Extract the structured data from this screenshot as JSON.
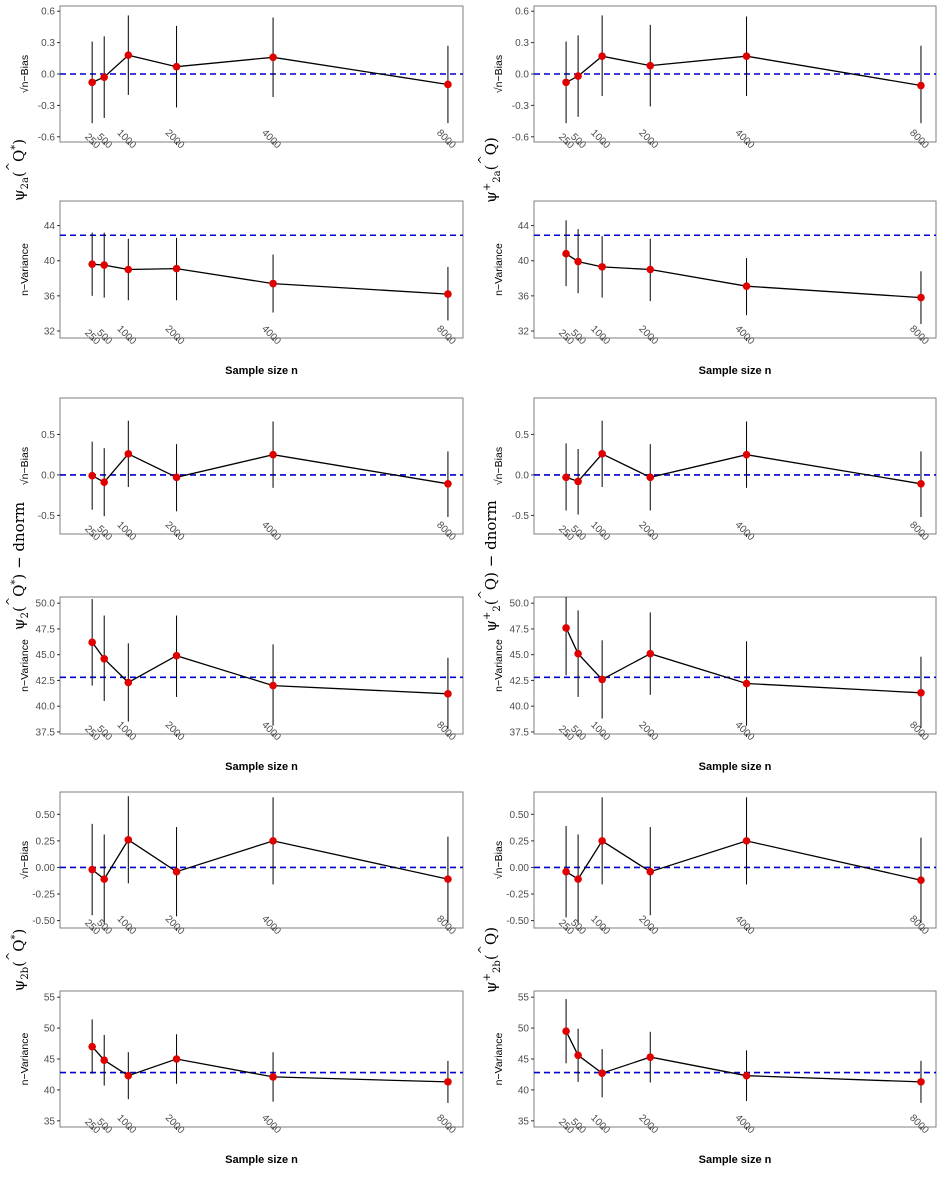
{
  "figure": {
    "row_labels": [
      {
        "left": {
          "psi": "ψ",
          "sub": "2a",
          "sup": "",
          "hat": "^",
          "q": "Q",
          "star": "*",
          "suffix": ""
        },
        "right": {
          "psi": "ψ",
          "sub": "2a",
          "sup": "+",
          "hat": "^",
          "q": "Q",
          "star": "",
          "suffix": ""
        }
      },
      {
        "left": {
          "psi": "ψ",
          "sub": "2",
          "sup": "",
          "hat": "^",
          "q": "Q",
          "star": "*",
          "suffix": " − dnorm"
        },
        "right": {
          "psi": "ψ",
          "sub": "2",
          "sup": "+",
          "hat": "^",
          "q": "Q",
          "star": "",
          "suffix": " − dnorm"
        }
      },
      {
        "left": {
          "psi": "ψ",
          "sub": "2b",
          "sup": "",
          "hat": "^",
          "q": "Q",
          "star": "*",
          "suffix": ""
        },
        "right": {
          "psi": "ψ",
          "sub": "2b",
          "sup": "+",
          "hat": "^",
          "q": "Q",
          "star": "",
          "suffix": ""
        }
      }
    ],
    "colors": {
      "point": "#e00000",
      "reference": "#0000cc",
      "line": "#000000",
      "panel_border": "#7f7f7f"
    }
  },
  "chart_data": [
    {
      "type": "line",
      "panel": "row1-left-bias",
      "ylabel": "√n−Bias",
      "xlabel": "",
      "x": [
        250,
        500,
        1000,
        2000,
        4000,
        8000
      ],
      "y": [
        -0.08,
        -0.03,
        0.18,
        0.07,
        0.16,
        -0.1
      ],
      "ci_low": [
        -0.47,
        -0.42,
        -0.2,
        -0.32,
        -0.22,
        -0.47
      ],
      "ci_high": [
        0.31,
        0.36,
        0.56,
        0.46,
        0.54,
        0.27
      ],
      "reference": 0,
      "ylim": [
        -0.65,
        0.65
      ],
      "yticks": [
        -0.6,
        -0.3,
        0.0,
        0.3,
        0.6
      ],
      "ytick_labels": [
        "-0.6",
        "-0.3",
        "0.0",
        "0.3",
        "0.6"
      ],
      "xticks": [
        250,
        500,
        1000,
        2000,
        4000,
        8000
      ]
    },
    {
      "type": "line",
      "panel": "row1-left-variance",
      "ylabel": "n−Variance",
      "xlabel": "Sample size n",
      "x": [
        250,
        500,
        1000,
        2000,
        4000,
        8000
      ],
      "y": [
        39.6,
        39.5,
        39.0,
        39.1,
        37.4,
        36.2
      ],
      "ci_low": [
        36.0,
        35.8,
        35.5,
        35.5,
        34.1,
        33.2
      ],
      "ci_high": [
        43.2,
        43.2,
        42.5,
        42.6,
        40.7,
        39.3
      ],
      "reference": 42.9,
      "ylim": [
        31.2,
        46.8
      ],
      "yticks": [
        32,
        36,
        40,
        44
      ],
      "ytick_labels": [
        "32",
        "36",
        "40",
        "44"
      ],
      "xticks": [
        250,
        500,
        1000,
        2000,
        4000,
        8000
      ]
    },
    {
      "type": "line",
      "panel": "row1-right-bias",
      "ylabel": "√n−Bias",
      "xlabel": "",
      "x": [
        250,
        500,
        1000,
        2000,
        4000,
        8000
      ],
      "y": [
        -0.08,
        -0.02,
        0.17,
        0.08,
        0.17,
        -0.11
      ],
      "ci_low": [
        -0.47,
        -0.41,
        -0.21,
        -0.31,
        -0.21,
        -0.47
      ],
      "ci_high": [
        0.31,
        0.37,
        0.56,
        0.47,
        0.55,
        0.27
      ],
      "reference": 0,
      "ylim": [
        -0.65,
        0.65
      ],
      "yticks": [
        -0.6,
        -0.3,
        0.0,
        0.3,
        0.6
      ],
      "ytick_labels": [
        "-0.6",
        "-0.3",
        "0.0",
        "0.3",
        "0.6"
      ],
      "xticks": [
        250,
        500,
        1000,
        2000,
        4000,
        8000
      ]
    },
    {
      "type": "line",
      "panel": "row1-right-variance",
      "ylabel": "n−Variance",
      "xlabel": "Sample size n",
      "x": [
        250,
        500,
        1000,
        2000,
        4000,
        8000
      ],
      "y": [
        40.8,
        39.9,
        39.3,
        39.0,
        37.1,
        35.8
      ],
      "ci_low": [
        37.1,
        36.3,
        35.8,
        35.4,
        33.8,
        32.8
      ],
      "ci_high": [
        44.6,
        43.6,
        42.8,
        42.5,
        40.3,
        38.8
      ],
      "reference": 42.9,
      "ylim": [
        31.2,
        46.8
      ],
      "yticks": [
        32,
        36,
        40,
        44
      ],
      "ytick_labels": [
        "32",
        "36",
        "40",
        "44"
      ],
      "xticks": [
        250,
        500,
        1000,
        2000,
        4000,
        8000
      ]
    },
    {
      "type": "line",
      "panel": "row2-left-bias",
      "ylabel": "√n−Bias",
      "xlabel": "",
      "x": [
        250,
        500,
        1000,
        2000,
        4000,
        8000
      ],
      "y": [
        -0.01,
        -0.09,
        0.26,
        -0.03,
        0.25,
        -0.11
      ],
      "ci_low": [
        -0.43,
        -0.51,
        -0.15,
        -0.45,
        -0.16,
        -0.52
      ],
      "ci_high": [
        0.41,
        0.33,
        0.67,
        0.38,
        0.66,
        0.29
      ],
      "reference": 0,
      "ylim": [
        -0.73,
        0.95
      ],
      "yticks": [
        -0.5,
        0.0,
        0.5
      ],
      "ytick_labels": [
        "-0.5",
        "0.0",
        "0.5"
      ],
      "xticks": [
        250,
        500,
        1000,
        2000,
        4000,
        8000
      ]
    },
    {
      "type": "line",
      "panel": "row2-left-variance",
      "ylabel": "n−Variance",
      "xlabel": "Sample size n",
      "x": [
        250,
        500,
        1000,
        2000,
        4000,
        8000
      ],
      "y": [
        46.2,
        44.6,
        42.3,
        44.9,
        42.0,
        41.2
      ],
      "ci_low": [
        42.0,
        40.5,
        38.5,
        40.9,
        38.1,
        37.8
      ],
      "ci_high": [
        50.4,
        48.8,
        46.1,
        48.8,
        46.0,
        44.7
      ],
      "reference": 42.8,
      "ylim": [
        37.3,
        50.6
      ],
      "yticks": [
        37.5,
        40.0,
        42.5,
        45.0,
        47.5,
        50.0
      ],
      "ytick_labels": [
        "37.5",
        "40.0",
        "42.5",
        "45.0",
        "47.5",
        "50.0"
      ],
      "xticks": [
        250,
        500,
        1000,
        2000,
        4000,
        8000
      ]
    },
    {
      "type": "line",
      "panel": "row2-right-bias",
      "ylabel": "√n−Bias",
      "xlabel": "",
      "x": [
        250,
        500,
        1000,
        2000,
        4000,
        8000
      ],
      "y": [
        -0.03,
        -0.08,
        0.26,
        -0.03,
        0.25,
        -0.11
      ],
      "ci_low": [
        -0.44,
        -0.49,
        -0.15,
        -0.44,
        -0.16,
        -0.52
      ],
      "ci_high": [
        0.39,
        0.32,
        0.67,
        0.38,
        0.66,
        0.29
      ],
      "reference": 0,
      "ylim": [
        -0.73,
        0.95
      ],
      "yticks": [
        -0.5,
        0.0,
        0.5
      ],
      "ytick_labels": [
        "-0.5",
        "0.0",
        "0.5"
      ],
      "xticks": [
        250,
        500,
        1000,
        2000,
        4000,
        8000
      ]
    },
    {
      "type": "line",
      "panel": "row2-right-variance",
      "ylabel": "n−Variance",
      "xlabel": "Sample size n",
      "x": [
        250,
        500,
        1000,
        2000,
        4000,
        8000
      ],
      "y": [
        47.6,
        45.1,
        42.6,
        45.1,
        42.2,
        41.3
      ],
      "ci_low": [
        43.0,
        40.9,
        38.8,
        41.1,
        38.1,
        37.9
      ],
      "ci_high": [
        52.0,
        49.3,
        46.4,
        49.1,
        46.3,
        44.8
      ],
      "reference": 42.8,
      "ylim": [
        37.3,
        50.6
      ],
      "yticks": [
        37.5,
        40.0,
        42.5,
        45.0,
        47.5,
        50.0
      ],
      "ytick_labels": [
        "37.5",
        "40.0",
        "42.5",
        "45.0",
        "47.5",
        "50.0"
      ],
      "xticks": [
        250,
        500,
        1000,
        2000,
        4000,
        8000
      ]
    },
    {
      "type": "line",
      "panel": "row3-left-bias",
      "ylabel": "√n−Bias",
      "xlabel": "",
      "x": [
        250,
        500,
        1000,
        2000,
        4000,
        8000
      ],
      "y": [
        -0.02,
        -0.11,
        0.26,
        -0.04,
        0.25,
        -0.11
      ],
      "ci_low": [
        -0.45,
        -0.53,
        -0.15,
        -0.46,
        -0.16,
        -0.52
      ],
      "ci_high": [
        0.41,
        0.31,
        0.67,
        0.38,
        0.66,
        0.29
      ],
      "reference": 0,
      "ylim": [
        -0.57,
        0.71
      ],
      "yticks": [
        -0.5,
        -0.25,
        0.0,
        0.25,
        0.5
      ],
      "ytick_labels": [
        "-0.50",
        "-0.25",
        "0.00",
        "0.25",
        "0.50"
      ],
      "xticks": [
        250,
        500,
        1000,
        2000,
        4000,
        8000
      ]
    },
    {
      "type": "line",
      "panel": "row3-left-variance",
      "ylabel": "n−Variance",
      "xlabel": "Sample size n",
      "x": [
        250,
        500,
        1000,
        2000,
        4000,
        8000
      ],
      "y": [
        47.0,
        44.8,
        42.3,
        45.0,
        42.1,
        41.3
      ],
      "ci_low": [
        42.6,
        40.7,
        38.5,
        41.0,
        38.1,
        37.9
      ],
      "ci_high": [
        51.4,
        48.9,
        46.1,
        49.0,
        46.1,
        44.7
      ],
      "reference": 42.8,
      "ylim": [
        34.0,
        56.0
      ],
      "yticks": [
        35,
        40,
        45,
        50,
        55
      ],
      "ytick_labels": [
        "35",
        "40",
        "45",
        "50",
        "55"
      ],
      "xticks": [
        250,
        500,
        1000,
        2000,
        4000,
        8000
      ]
    },
    {
      "type": "line",
      "panel": "row3-right-bias",
      "ylabel": "√n−Bias",
      "xlabel": "",
      "x": [
        250,
        500,
        1000,
        2000,
        4000,
        8000
      ],
      "y": [
        -0.04,
        -0.11,
        0.25,
        -0.04,
        0.25,
        -0.12
      ],
      "ci_low": [
        -0.47,
        -0.53,
        -0.16,
        -0.45,
        -0.16,
        -0.52
      ],
      "ci_high": [
        0.39,
        0.31,
        0.66,
        0.38,
        0.66,
        0.28
      ],
      "reference": 0,
      "ylim": [
        -0.57,
        0.71
      ],
      "yticks": [
        -0.5,
        -0.25,
        0.0,
        0.25,
        0.5
      ],
      "ytick_labels": [
        "-0.50",
        "-0.25",
        "0.00",
        "0.25",
        "0.50"
      ],
      "xticks": [
        250,
        500,
        1000,
        2000,
        4000,
        8000
      ]
    },
    {
      "type": "line",
      "panel": "row3-right-variance",
      "ylabel": "n−Variance",
      "xlabel": "Sample size n",
      "x": [
        250,
        500,
        1000,
        2000,
        4000,
        8000
      ],
      "y": [
        49.5,
        45.6,
        42.7,
        45.3,
        42.3,
        41.3
      ],
      "ci_low": [
        44.3,
        41.3,
        38.8,
        41.2,
        38.2,
        37.9
      ],
      "ci_high": [
        54.7,
        49.9,
        46.6,
        49.4,
        46.4,
        44.7
      ],
      "reference": 42.8,
      "ylim": [
        34.0,
        56.0
      ],
      "yticks": [
        35,
        40,
        45,
        50,
        55
      ],
      "ytick_labels": [
        "35",
        "40",
        "45",
        "50",
        "55"
      ],
      "xticks": [
        250,
        500,
        1000,
        2000,
        4000,
        8000
      ]
    }
  ]
}
